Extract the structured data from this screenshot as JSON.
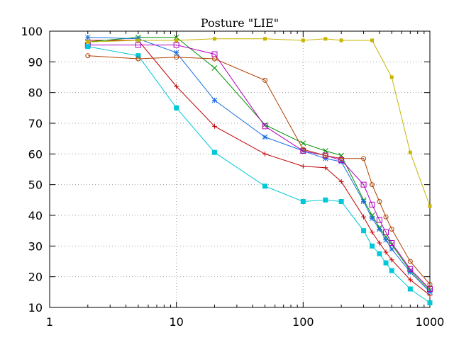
{
  "chart_data": {
    "type": "line",
    "title": "Posture \"LIE\"",
    "xlabel": "",
    "ylabel": "",
    "x_scale": "log",
    "xlim": [
      1,
      1000
    ],
    "ylim": [
      10,
      100
    ],
    "x_ticks": [
      1,
      10,
      100,
      1000
    ],
    "y_ticks": [
      10,
      20,
      30,
      40,
      50,
      60,
      70,
      80,
      90,
      100
    ],
    "grid": "dotted",
    "legend": "none",
    "series": [
      {
        "color": "#c00000",
        "marker": "plus",
        "x": [
          2,
          5,
          10,
          20,
          50,
          100,
          150,
          200,
          300,
          350,
          400,
          450,
          500,
          700,
          1000
        ],
        "values": [
          97,
          97,
          82,
          69,
          60,
          56,
          55.5,
          51,
          39.5,
          34.5,
          31,
          28,
          25.5,
          19,
          14
        ]
      },
      {
        "color": "#009000",
        "marker": "cross",
        "x": [
          2,
          5,
          10,
          20,
          50,
          100,
          150,
          200,
          300,
          350,
          400,
          450,
          500,
          700,
          1000
        ],
        "values": [
          96.5,
          98,
          98,
          88,
          69.5,
          63.5,
          61,
          59.5,
          45,
          40,
          36,
          33,
          30.5,
          22,
          15.5
        ]
      },
      {
        "color": "#1a6ee0",
        "marker": "asterisk",
        "x": [
          2,
          5,
          10,
          20,
          50,
          100,
          150,
          200,
          300,
          350,
          400,
          450,
          500,
          700,
          1000
        ],
        "values": [
          98,
          97.5,
          93,
          77.5,
          65.5,
          61,
          58.5,
          57.5,
          44.5,
          39,
          35.5,
          32,
          29,
          21.5,
          15
        ]
      },
      {
        "color": "#b000c0",
        "marker": "open-square",
        "x": [
          2,
          5,
          10,
          20,
          50,
          100,
          150,
          200,
          300,
          350,
          400,
          450,
          500,
          700,
          1000
        ],
        "values": [
          95.5,
          95.5,
          95.5,
          92.5,
          69,
          61,
          59.5,
          58,
          50,
          43.5,
          38.5,
          34.5,
          31,
          22.5,
          16
        ]
      },
      {
        "color": "#00c8d8",
        "marker": "filled-square",
        "x": [
          2,
          5,
          10,
          20,
          50,
          100,
          150,
          200,
          300,
          350,
          400,
          450,
          500,
          700,
          1000
        ],
        "values": [
          95,
          92,
          75,
          60.5,
          49.5,
          44.5,
          45,
          44.5,
          35,
          30,
          27.5,
          24.5,
          22,
          16,
          11.5
        ]
      },
      {
        "color": "#c8b400",
        "marker": "filled-square-small",
        "x": [
          2,
          5,
          10,
          20,
          50,
          100,
          150,
          200,
          350,
          500,
          700,
          1000
        ],
        "values": [
          96.5,
          97,
          97,
          97.5,
          97.5,
          97,
          97.5,
          97,
          97,
          85,
          60.5,
          43
        ]
      },
      {
        "color": "#b04000",
        "marker": "open-circle",
        "x": [
          2,
          5,
          10,
          20,
          50,
          100,
          150,
          200,
          300,
          350,
          400,
          450,
          500,
          700,
          1000
        ],
        "values": [
          92,
          91,
          91.5,
          91,
          84,
          61.5,
          59.5,
          58.5,
          58.5,
          50,
          44.5,
          39.5,
          35.5,
          25,
          17.5
        ]
      }
    ]
  }
}
